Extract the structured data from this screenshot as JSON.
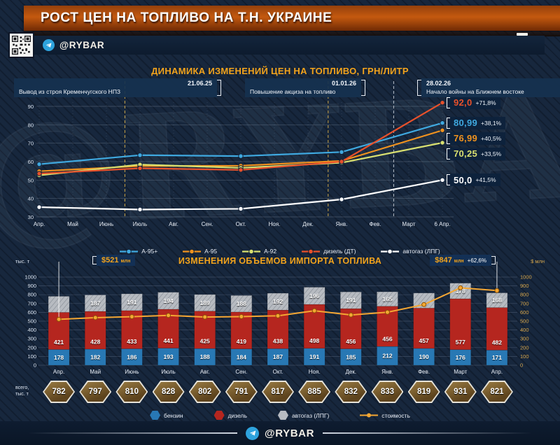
{
  "header": {
    "title": "РОСТ ЦЕН НА ТОПЛИВО НА Т.Н. УКРАИНЕ",
    "channel": "@RYBAR"
  },
  "watermark": "@RYBAR",
  "footer": {
    "channel": "@RYBAR"
  },
  "colors": {
    "accent_gold": "#f2a31c",
    "background": "#17273d",
    "a95plus": "#3fa9e0",
    "a95": "#f0921e",
    "a92": "#d9e070",
    "diesel_line": "#e8512b",
    "lpg_line": "#ffffff",
    "petrol_bar": "#2878b4",
    "diesel_bar": "#b5261f",
    "lpg_bar": "#b7bbc1",
    "cost_line": "#f5a733"
  },
  "chart_data": [
    {
      "type": "line",
      "title": "ДИНАМИКА ИЗМЕНЕНИЙ ЦЕН НА ТОПЛИВО, ГРН/ЛИТР",
      "x": [
        "Апр.",
        "Май",
        "Июнь",
        "Июль",
        "Авг.",
        "Сен.",
        "Окт.",
        "Ноя.",
        "Дек.",
        "Янв.",
        "Фев.",
        "Март",
        "6 Апр."
      ],
      "ylim": [
        30,
        92
      ],
      "yticks": [
        30,
        40,
        50,
        60,
        70,
        80,
        90
      ],
      "grid": true,
      "legend_position": "bottom",
      "marker_indices": [
        0,
        3,
        6,
        9,
        12
      ],
      "series": [
        {
          "name": "А-95+",
          "color": "#3fa9e0",
          "values": [
            58.6,
            63.5,
            63.0,
            65.2,
            80.99
          ],
          "end_label": "80,99",
          "change": "+38,1%"
        },
        {
          "name": "А-95",
          "color": "#f0921e",
          "values": [
            54.8,
            57.6,
            57.8,
            60.4,
            76.99
          ],
          "end_label": "76,99",
          "change": "+40,5%"
        },
        {
          "name": "А-92",
          "color": "#d9e070",
          "values": [
            52.6,
            58.4,
            56.6,
            59.4,
            70.25
          ],
          "end_label": "70,25",
          "change": "+33,5%"
        },
        {
          "name": "дизель (ДТ)",
          "color": "#e8512b",
          "values": [
            53.5,
            56.4,
            55.5,
            60.0,
            92.0
          ],
          "end_label": "92,0",
          "change": "+71,8%"
        },
        {
          "name": "автогаз (ЛПГ)",
          "color": "#ffffff",
          "values": [
            35.3,
            34.0,
            34.4,
            39.5,
            50.0
          ],
          "end_label": "50,0",
          "change": "+41,5%"
        }
      ],
      "annotations": [
        {
          "date": "21.06.25",
          "text": "Вывод из строя Кременчугского НПЗ",
          "x_index": 2.55,
          "line_color": "#c9a44a"
        },
        {
          "date": "01.01.26",
          "text": "Повышение акциза на топливо",
          "x_index": 8.6,
          "line_color": "#c9a44a"
        },
        {
          "date": "28.02.26",
          "text": "Начало войны на Ближнем востоке",
          "x_index": 10.55,
          "line_color": "#b9c2cc"
        }
      ]
    },
    {
      "type": "bar",
      "title": "ИЗМЕНЕНИЯ ОБЪЕМОВ ИМПОРТА ТОПЛИВА",
      "left_axis_label": "тыс. т",
      "right_axis_label": "$ млн",
      "categories": [
        "Апр.",
        "Май",
        "Июнь",
        "Июль",
        "Авг.",
        "Сен.",
        "Окт.",
        "Ноя.",
        "Дек.",
        "Янв.",
        "Фев.",
        "Март",
        "Апр."
      ],
      "ylim": [
        0,
        1000
      ],
      "yticks": [
        0,
        100,
        200,
        300,
        400,
        500,
        600,
        700,
        800,
        900,
        1000
      ],
      "stacked": true,
      "series": [
        {
          "name": "бензин",
          "color": "#2878b4",
          "values": [
            178,
            182,
            186,
            193,
            188,
            184,
            187,
            191,
            185,
            212,
            190,
            176,
            171
          ]
        },
        {
          "name": "дизель",
          "color": "#b5261f",
          "values": [
            421,
            428,
            433,
            441,
            425,
            419,
            438,
            498,
            456,
            456,
            457,
            577,
            482
          ]
        },
        {
          "name": "автогаз (ЛПГ)",
          "color": "#b7bbc1",
          "values": [
            183,
            187,
            191,
            194,
            189,
            188,
            192,
            196,
            191,
            165,
            172,
            178,
            168
          ],
          "label_hidden_indices": [
            0,
            10
          ]
        }
      ],
      "cost_line": {
        "name": "стоимость",
        "color": "#f5a733",
        "values": [
          521,
          540,
          551,
          565,
          547,
          552,
          561,
          618,
          570,
          601,
          688,
          878,
          847
        ]
      },
      "totals_caption_line1": "всего,",
      "totals_caption_line2": "тыс. т",
      "totals": [
        782,
        797,
        810,
        828,
        802,
        791,
        817,
        885,
        832,
        833,
        819,
        931,
        821
      ],
      "start_annotation": {
        "value": "$521",
        "unit": "млн"
      },
      "end_annotation": {
        "value": "$847",
        "unit": "млн",
        "change": "+62,6%"
      }
    }
  ]
}
